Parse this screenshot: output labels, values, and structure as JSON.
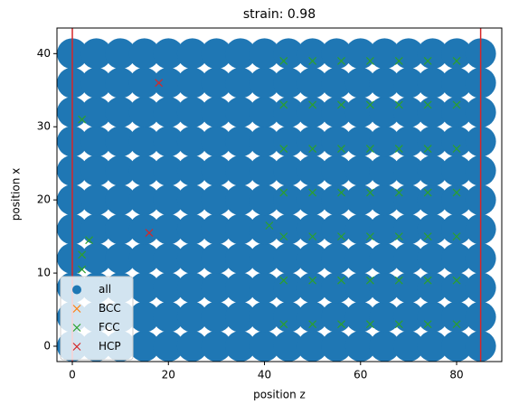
{
  "chart_data": {
    "type": "scatter",
    "title": "strain: 0.98",
    "xlabel": "position z",
    "ylabel": "position x",
    "xlim": [
      -3.2,
      89.4
    ],
    "ylim": [
      -2.1,
      43.5
    ],
    "xticks": [
      0,
      20,
      40,
      60,
      80
    ],
    "yticks": [
      0,
      10,
      20,
      30,
      40
    ],
    "vlines": [
      0,
      85
    ],
    "vline_color": "#d62728",
    "legend": "lower left",
    "series": [
      {
        "name": "all",
        "color": "#1f77b4",
        "marker": "o",
        "x": [
          0,
          5,
          10,
          15,
          20,
          25,
          30,
          35,
          40,
          45,
          50,
          55,
          60,
          65,
          70,
          75,
          80,
          85,
          0,
          5,
          10,
          15,
          20,
          25,
          30,
          35,
          40,
          45,
          50,
          55,
          60,
          65,
          70,
          75,
          80,
          85,
          0,
          5,
          10,
          15,
          20,
          25,
          30,
          35,
          40,
          45,
          50,
          55,
          60,
          65,
          70,
          75,
          80,
          85,
          0,
          5,
          10,
          15,
          20,
          25,
          30,
          35,
          40,
          45,
          50,
          55,
          60,
          65,
          70,
          75,
          80,
          85,
          0,
          5,
          10,
          15,
          20,
          25,
          30,
          35,
          40,
          45,
          50,
          55,
          60,
          65,
          70,
          75,
          80,
          85,
          0,
          5,
          10,
          15,
          20,
          25,
          30,
          35,
          40,
          45,
          50,
          55,
          60,
          65,
          70,
          75,
          80,
          85,
          0,
          5,
          10,
          15,
          20,
          25,
          30,
          35,
          40,
          45,
          50,
          55,
          60,
          65,
          70,
          75,
          80,
          85,
          0,
          5,
          10,
          15,
          20,
          25,
          30,
          35,
          40,
          45,
          50,
          55,
          60,
          65,
          70,
          75,
          80,
          85,
          0,
          5,
          10,
          15,
          20,
          25,
          30,
          35,
          40,
          45,
          50,
          55,
          60,
          65,
          70,
          75,
          80,
          85,
          0,
          5,
          10,
          15,
          20,
          25,
          30,
          35,
          40,
          45,
          50,
          55,
          60,
          65,
          70,
          75,
          80,
          85,
          0,
          5,
          10,
          15,
          20,
          25,
          30,
          35,
          40,
          45,
          50,
          55,
          60,
          65,
          70,
          75,
          80,
          85
        ],
        "values": [
          0,
          0,
          0,
          0,
          0,
          0,
          0,
          0,
          0,
          0,
          0,
          0,
          0,
          0,
          0,
          0,
          0,
          0,
          4,
          4,
          4,
          4,
          4,
          4,
          4,
          4,
          4,
          4,
          4,
          4,
          4,
          4,
          4,
          4,
          4,
          4,
          8,
          8,
          8,
          8,
          8,
          8,
          8,
          8,
          8,
          8,
          8,
          8,
          8,
          8,
          8,
          8,
          8,
          8,
          12,
          12,
          12,
          12,
          12,
          12,
          12,
          12,
          12,
          12,
          12,
          12,
          12,
          12,
          12,
          12,
          12,
          12,
          16,
          16,
          16,
          16,
          16,
          16,
          16,
          16,
          16,
          16,
          16,
          16,
          16,
          16,
          16,
          16,
          16,
          16,
          20,
          20,
          20,
          20,
          20,
          20,
          20,
          20,
          20,
          20,
          20,
          20,
          20,
          20,
          20,
          20,
          20,
          20,
          24,
          24,
          24,
          24,
          24,
          24,
          24,
          24,
          24,
          24,
          24,
          24,
          24,
          24,
          24,
          24,
          24,
          24,
          28,
          28,
          28,
          28,
          28,
          28,
          28,
          28,
          28,
          28,
          28,
          28,
          28,
          28,
          28,
          28,
          28,
          28,
          32,
          32,
          32,
          32,
          32,
          32,
          32,
          32,
          32,
          32,
          32,
          32,
          32,
          32,
          32,
          32,
          32,
          32,
          36,
          36,
          36,
          36,
          36,
          36,
          36,
          36,
          36,
          36,
          36,
          36,
          36,
          36,
          36,
          36,
          36,
          36,
          40,
          40,
          40,
          40,
          40,
          40,
          40,
          40,
          40,
          40,
          40,
          40,
          40,
          40,
          40,
          40,
          40,
          40
        ]
      },
      {
        "name": "BCC",
        "color": "#ff7f0e",
        "marker": "x",
        "x": [],
        "values": []
      },
      {
        "name": "FCC",
        "color": "#2ca02c",
        "marker": "x",
        "x": [
          44,
          50,
          56,
          62,
          68,
          74,
          80,
          44,
          50,
          56,
          62,
          68,
          74,
          80,
          44,
          50,
          56,
          62,
          68,
          74,
          80,
          44,
          50,
          56,
          62,
          68,
          74,
          80,
          44,
          50,
          56,
          62,
          68,
          74,
          80,
          44,
          50,
          56,
          62,
          68,
          74,
          80,
          44,
          50,
          56,
          62,
          68,
          74,
          80,
          2,
          3.5,
          2,
          2,
          41
        ],
        "values": [
          3,
          3,
          3,
          3,
          3,
          3,
          3,
          9,
          9,
          9,
          9,
          9,
          9,
          9,
          15,
          15,
          15,
          15,
          15,
          15,
          15,
          21,
          21,
          21,
          21,
          21,
          21,
          21,
          27,
          27,
          27,
          27,
          27,
          27,
          27,
          33,
          33,
          33,
          33,
          33,
          33,
          33,
          39,
          39,
          39,
          39,
          39,
          39,
          39,
          31,
          14.5,
          12.5,
          10.5,
          16.5
        ]
      },
      {
        "name": "HCP",
        "color": "#d62728",
        "marker": "x",
        "x": [
          18,
          16
        ],
        "values": [
          36,
          15.5
        ]
      }
    ]
  }
}
